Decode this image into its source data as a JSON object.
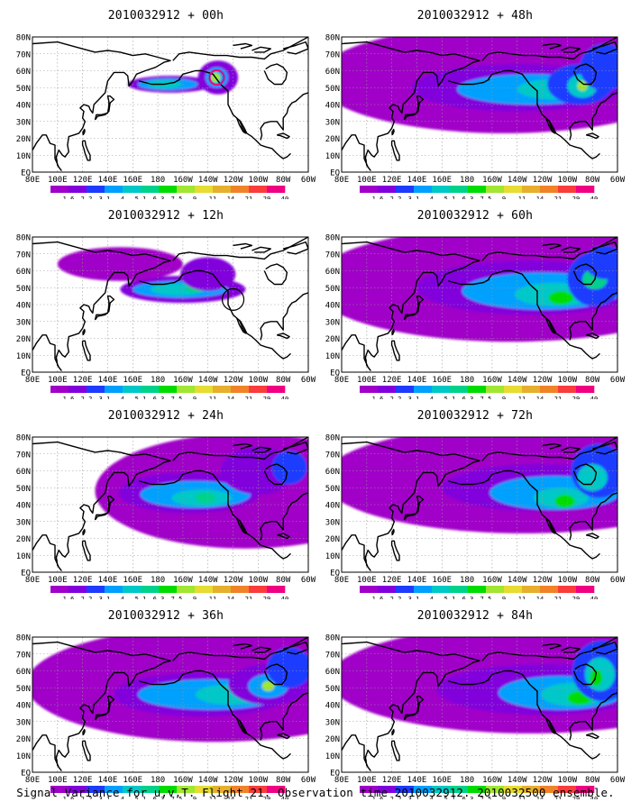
{
  "caption": "Signal Variance for u,v,T. Flight 21. Observation time 2010032912. 2010032500 ensemble.",
  "colors": {
    "grid": "#999999",
    "coast": "#000000",
    "palette": [
      "#a000c8",
      "#8200dc",
      "#1e3cff",
      "#00a0ff",
      "#00c8c8",
      "#00d28c",
      "#00dc00",
      "#a0e632",
      "#e6dc32",
      "#e6af2d",
      "#f08228",
      "#fa3c3c",
      "#f00082"
    ]
  },
  "colorbar": {
    "labels": [
      "1.6",
      "2.2",
      "3.1",
      "4",
      "5.1",
      "6.3",
      "7.5",
      "9",
      "11",
      "14",
      "21",
      "29",
      "40"
    ]
  },
  "axes": {
    "lon_ticks": [
      "80E",
      "100E",
      "120E",
      "140E",
      "160E",
      "180",
      "160W",
      "140W",
      "120W",
      "100W",
      "80W",
      "60W"
    ],
    "lat_ticks": [
      "80N",
      "70N",
      "60N",
      "50N",
      "40N",
      "30N",
      "20N",
      "10N",
      "EQ"
    ],
    "lon_range": [
      80,
      300
    ],
    "lat_range": [
      0,
      80
    ],
    "grid": true
  },
  "chart_data": [
    {
      "type": "heatmap",
      "title": "2010032912 + 00h",
      "lead": 0,
      "xlabel": "",
      "ylabel": "",
      "legend": "bottom"
    },
    {
      "type": "heatmap",
      "title": "2010032912 + 12h",
      "lead": 12,
      "xlabel": "",
      "ylabel": "",
      "legend": "bottom"
    },
    {
      "type": "heatmap",
      "title": "2010032912 + 24h",
      "lead": 24,
      "xlabel": "",
      "ylabel": "",
      "legend": "bottom"
    },
    {
      "type": "heatmap",
      "title": "2010032912 + 36h",
      "lead": 36,
      "xlabel": "",
      "ylabel": "",
      "legend": "bottom"
    },
    {
      "type": "heatmap",
      "title": "2010032912 + 48h",
      "lead": 48,
      "xlabel": "",
      "ylabel": "",
      "legend": "bottom"
    },
    {
      "type": "heatmap",
      "title": "2010032912 + 60h",
      "lead": 60,
      "xlabel": "",
      "ylabel": "",
      "legend": "bottom"
    },
    {
      "type": "heatmap",
      "title": "2010032912 + 72h",
      "lead": 72,
      "xlabel": "",
      "ylabel": "",
      "legend": "bottom"
    },
    {
      "type": "heatmap",
      "title": "2010032912 + 84h",
      "lead": 84,
      "xlabel": "",
      "ylabel": "",
      "legend": "bottom"
    }
  ]
}
